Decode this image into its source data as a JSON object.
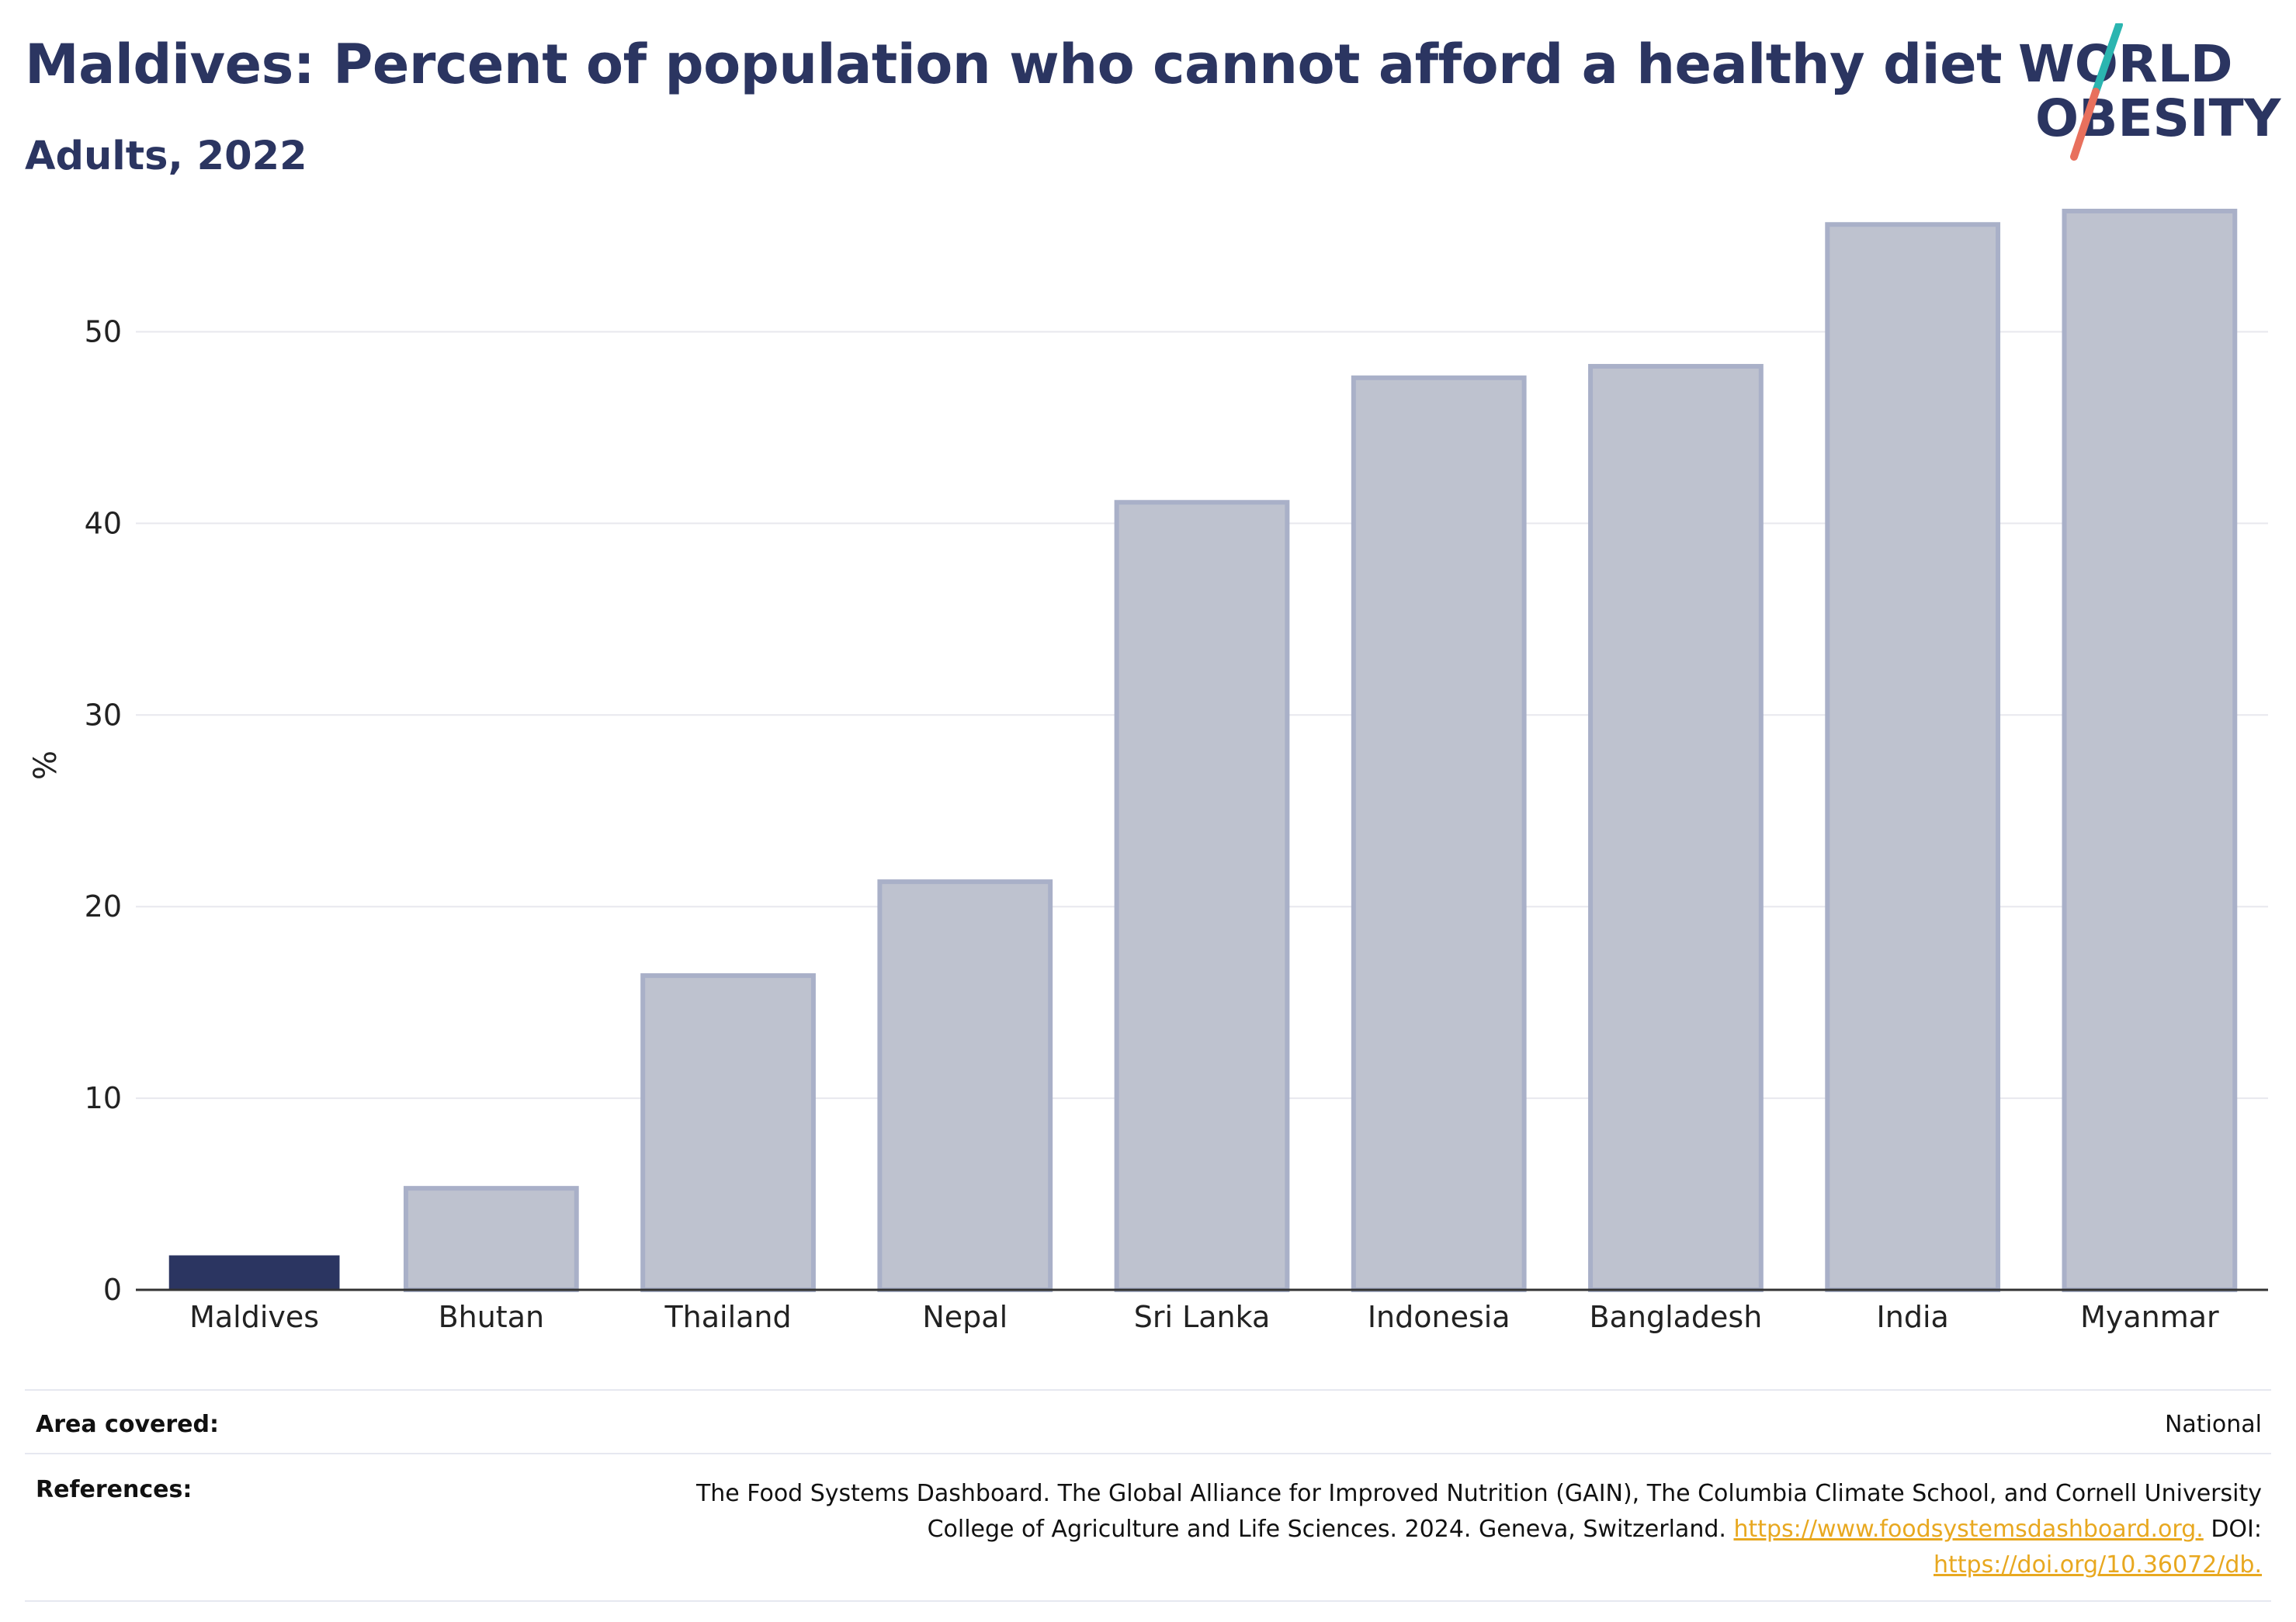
{
  "header": {
    "title": "Maldives: Percent of population who cannot afford a healthy diet",
    "subtitle": "Adults, 2022"
  },
  "logo": {
    "line1": "WORLD",
    "line2": "OBESITY"
  },
  "chart_data": {
    "type": "bar",
    "categories": [
      "Maldives",
      "Bhutan",
      "Thailand",
      "Nepal",
      "Sri Lanka",
      "Indonesia",
      "Bangladesh",
      "India",
      "Myanmar"
    ],
    "values": [
      1.8,
      5.3,
      16.4,
      21.3,
      41.1,
      47.6,
      48.2,
      55.6,
      56.3
    ],
    "highlight": "Maldives",
    "ylabel": "%",
    "xlabel": "",
    "ylim": [
      0,
      58
    ],
    "yticks": [
      0,
      10,
      20,
      30,
      40,
      50
    ],
    "grid": true,
    "colors": {
      "highlight": "#2b3561",
      "other": "#bec2cf",
      "other_border": "#a9b0c8",
      "grid": "#e8e8ee",
      "axis": "#333333"
    }
  },
  "footer": {
    "area_label": "Area covered:",
    "area_value": "National",
    "refs_label": "References:",
    "refs_line1": "The Food Systems Dashboard. The Global Alliance for Improved Nutrition (GAIN), The Columbia Climate School, and Cornell University",
    "refs_line2_text": "College of Agriculture and Life Sciences. 2024. Geneva, Switzerland.",
    "refs_link1": "https://www.foodsystemsdashboard.org.",
    "refs_doi": "DOI:",
    "refs_link2": "https://doi.org/10.36072/db."
  }
}
